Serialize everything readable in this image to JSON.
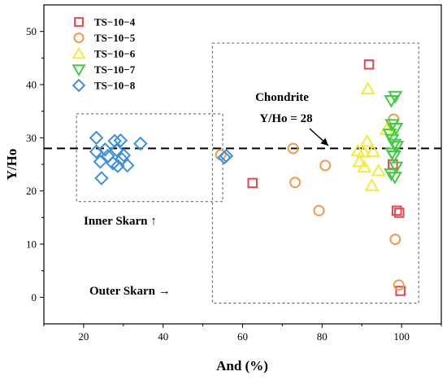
{
  "chart_data": {
    "type": "scatter",
    "title": "",
    "xlabel": "And (%)",
    "ylabel": "Y/Ho",
    "xlim": [
      10,
      110
    ],
    "ylim": [
      -5,
      55
    ],
    "xticks": [
      20,
      40,
      60,
      80,
      100
    ],
    "yticks": [
      0,
      10,
      20,
      30,
      40,
      50
    ],
    "grid": false,
    "legend_position": "top-left",
    "series": [
      {
        "name": "TS−10−4",
        "marker": "square",
        "color": "#e8454f",
        "points": [
          [
            62.5,
            21.5
          ],
          [
            91.8,
            43.8
          ],
          [
            98.8,
            16.3
          ],
          [
            99.4,
            15.9
          ],
          [
            99.7,
            1.2
          ],
          [
            97.8,
            25.0
          ]
        ]
      },
      {
        "name": "TS−10−5",
        "marker": "circle",
        "color": "#f39a4f",
        "points": [
          [
            54.5,
            26.8
          ],
          [
            72.7,
            28.0
          ],
          [
            73.2,
            21.6
          ],
          [
            79.2,
            16.3
          ],
          [
            80.8,
            24.8
          ],
          [
            98.0,
            33.5
          ],
          [
            98.4,
            10.9
          ],
          [
            99.3,
            2.3
          ]
        ]
      },
      {
        "name": "TS−10−6",
        "marker": "triangle-up",
        "color": "#f5ea3a",
        "points": [
          [
            91.5,
            39.2
          ],
          [
            91.3,
            29.3
          ],
          [
            89.0,
            27.5
          ],
          [
            90.5,
            27.3
          ],
          [
            92.8,
            27.4
          ],
          [
            89.4,
            25.5
          ],
          [
            90.6,
            24.5
          ],
          [
            94.2,
            23.8
          ],
          [
            92.5,
            21.0
          ],
          [
            96.2,
            31.5
          ]
        ]
      },
      {
        "name": "TS−10−7",
        "marker": "triangle-down",
        "color": "#3fcc3f",
        "points": [
          [
            97.4,
            37.0
          ],
          [
            98.4,
            37.8
          ],
          [
            97.6,
            32.5
          ],
          [
            98.6,
            31.8
          ],
          [
            97.0,
            30.7
          ],
          [
            97.6,
            29.7
          ],
          [
            98.2,
            28.8
          ],
          [
            98.8,
            28.4
          ],
          [
            97.6,
            27.1
          ],
          [
            98.1,
            26.6
          ],
          [
            97.4,
            23.2
          ],
          [
            98.3,
            22.6
          ],
          [
            98.6,
            24.5
          ]
        ]
      },
      {
        "name": "TS−10−8",
        "marker": "diamond",
        "color": "#3d8fe0",
        "points": [
          [
            23.2,
            30.0
          ],
          [
            23.2,
            27.4
          ],
          [
            24.2,
            25.5
          ],
          [
            24.5,
            22.4
          ],
          [
            25.4,
            27.8
          ],
          [
            26.1,
            26.6
          ],
          [
            27.4,
            25.2
          ],
          [
            27.8,
            29.4
          ],
          [
            28.6,
            24.7
          ],
          [
            28.3,
            27.7
          ],
          [
            29.3,
            29.5
          ],
          [
            29.6,
            26.0
          ],
          [
            30.1,
            26.7
          ],
          [
            31.0,
            24.8
          ],
          [
            34.3,
            28.9
          ],
          [
            55.4,
            26.3
          ],
          [
            55.9,
            26.6
          ]
        ]
      }
    ],
    "reference_line": {
      "y": 28,
      "style": "dashed"
    },
    "regions": [
      {
        "name": "Inner Skarn",
        "x": [
          18.2,
          55.0
        ],
        "y": [
          18.0,
          34.5
        ]
      },
      {
        "name": "Outer Skarn",
        "x": [
          52.4,
          104.3
        ],
        "y": [
          -1.1,
          47.8
        ]
      }
    ],
    "annotations": [
      {
        "text": "Chondrite",
        "arrow_to": [
          95.5,
          28
        ]
      },
      {
        "text": "Y/Ho = 28"
      },
      {
        "text": "Inner Skarn ↑"
      },
      {
        "text": "Outer Skarn →"
      }
    ]
  }
}
